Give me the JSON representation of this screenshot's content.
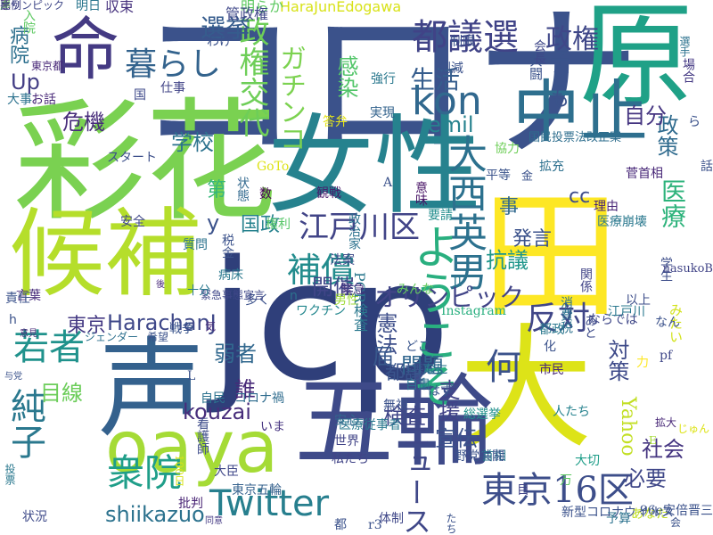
{
  "wordcloud": {
    "words": [
      {
        "text": "コロナ",
        "color": "#3b528b"
      },
      {
        "text": "jcp",
        "color": "#2f3f7a"
      },
      {
        "text": "彩花",
        "color": "#7ad151"
      },
      {
        "text": "女性",
        "color": "#26828e"
      },
      {
        "text": "候補",
        "color": "#b5de2b"
      },
      {
        "text": "原",
        "color": "#1fa187"
      },
      {
        "text": "田",
        "color": "#fde725"
      },
      {
        "text": "大",
        "color": "#dde318"
      },
      {
        "text": "声",
        "color": "#34618d"
      },
      {
        "text": "五輪",
        "color": "#3e4a89"
      },
      {
        "text": "oaya",
        "color": "#a5db36"
      },
      {
        "text": "命",
        "color": "#443a83"
      },
      {
        "text": "中止",
        "color": "#2e6f8e"
      },
      {
        "text": "都議選",
        "color": "#404387"
      },
      {
        "text": "暮らし",
        "color": "#33638d"
      },
      {
        "text": "政権交代",
        "color": "#6ece58"
      },
      {
        "text": "選挙",
        "color": "#365c8d"
      },
      {
        "text": "政権",
        "color": "#3f4788"
      },
      {
        "text": "生活",
        "color": "#365d8d"
      },
      {
        "text": "kon",
        "color": "#31688e"
      },
      {
        "text": "純子",
        "color": "#2a788e"
      },
      {
        "text": "若者",
        "color": "#20928c"
      },
      {
        "text": "衆院",
        "color": "#1f9e89"
      },
      {
        "text": "東京16区",
        "color": "#3d4e8a"
      },
      {
        "text": "Twitter",
        "color": "#277f8e"
      },
      {
        "text": "江戸川区",
        "color": "#414487"
      },
      {
        "text": "大西英男",
        "color": "#2c718e"
      },
      {
        "text": "ようこそ",
        "color": "#29af7f"
      },
      {
        "text": "補償",
        "color": "#228c8d"
      },
      {
        "text": "何",
        "color": "#3b528b"
      },
      {
        "text": "反対",
        "color": "#404688"
      },
      {
        "text": "HarachanJ",
        "color": "#3f4889"
      },
      {
        "text": "kouzai",
        "color": "#472d7b"
      },
      {
        "text": "shiikazuo",
        "color": "#2c728e"
      },
      {
        "text": "オリンピック",
        "color": "#414487"
      },
      {
        "text": "医療",
        "color": "#2eb37c"
      },
      {
        "text": "政策",
        "color": "#2f6b8e"
      },
      {
        "text": "自分",
        "color": "#453581"
      },
      {
        "text": "子ども",
        "color": "#3a538b"
      },
      {
        "text": "国政",
        "color": "#26828e"
      },
      {
        "text": "学校",
        "color": "#2c728e"
      },
      {
        "text": "危機",
        "color": "#472c7a"
      },
      {
        "text": "感染",
        "color": "#52c569"
      },
      {
        "text": "emil",
        "color": "#26828e"
      },
      {
        "text": "Up",
        "color": "#433e85"
      },
      {
        "text": "ガチンコ",
        "color": "#7cd250"
      },
      {
        "text": "開催",
        "color": "#404588"
      },
      {
        "text": "憲法",
        "color": "#3d4e8a"
      },
      {
        "text": "抗議",
        "color": "#1f968b"
      },
      {
        "text": "発言",
        "color": "#3b528b"
      },
      {
        "text": "事",
        "color": "#30698e"
      },
      {
        "text": "cc",
        "color": "#3e4c8a"
      },
      {
        "text": "問題",
        "color": "#31668e"
      },
      {
        "text": "対策",
        "color": "#3e4a89"
      },
      {
        "text": "支援",
        "color": "#414287"
      },
      {
        "text": "検査",
        "color": "#404688"
      },
      {
        "text": "宣伝",
        "color": "#3b528b"
      },
      {
        "text": "社会",
        "color": "#453581"
      },
      {
        "text": "必要",
        "color": "#3f4788"
      },
      {
        "text": "都議",
        "color": "#3a548c"
      },
      {
        "text": "Yahoo",
        "color": "#c2df23"
      },
      {
        "text": "ニュース",
        "color": "#3f4788"
      },
      {
        "text": "東京",
        "color": "#443983"
      },
      {
        "text": "弱者",
        "color": "#31688e"
      },
      {
        "text": "誰",
        "color": "#472878"
      },
      {
        "text": "届",
        "color": "#38588c"
      },
      {
        "text": "目線",
        "color": "#6ccd5a"
      },
      {
        "text": "第",
        "color": "#35b779"
      },
      {
        "text": "y",
        "color": "#3b528b"
      },
      {
        "text": "病院",
        "color": "#2d708e"
      },
      {
        "text": "HaraJunEdogawa",
        "color": "#d8e219"
      },
      {
        "text": "明らか",
        "color": "#5ec962"
      },
      {
        "text": "管政権",
        "color": "#3f4788"
      },
      {
        "text": "収束",
        "color": "#46327e"
      },
      {
        "text": "明日",
        "color": "#2a768e"
      },
      {
        "text": "入院",
        "color": "#5ec962"
      },
      {
        "text": "制限",
        "color": "#3b528b"
      },
      {
        "text": "国民投票法改正案",
        "color": "#2e6e8e"
      },
      {
        "text": "菅首相",
        "color": "#482878"
      },
      {
        "text": "学生",
        "color": "#3d4d8a"
      },
      {
        "text": "医療崩壊",
        "color": "#2a788e"
      },
      {
        "text": "理由",
        "color": "#482576"
      },
      {
        "text": "関係",
        "color": "#414487"
      },
      {
        "text": "消費税",
        "color": "#2c728e"
      },
      {
        "text": "みたい",
        "color": "#d2e21b"
      },
      {
        "text": "ならでは",
        "color": "#3f4788"
      },
      {
        "text": "男性",
        "color": "#9fda3a"
      },
      {
        "text": "みんな",
        "color": "#65cb5e"
      },
      {
        "text": "要請",
        "color": "#228d8d"
      },
      {
        "text": "法案",
        "color": "#3e4989"
      },
      {
        "text": "多く",
        "color": "#3b518b"
      },
      {
        "text": "病床",
        "color": "#2a788e"
      },
      {
        "text": "権利",
        "color": "#56c667"
      },
      {
        "text": "観戦",
        "color": "#48186a"
      },
      {
        "text": "GoTo",
        "color": "#dde318"
      },
      {
        "text": "数",
        "color": "#440154"
      },
      {
        "text": "質問",
        "color": "#2c738e"
      },
      {
        "text": "スタート",
        "color": "#3c4f8a"
      },
      {
        "text": "安全",
        "color": "#3f4788"
      },
      {
        "text": "意味",
        "color": "#471365"
      },
      {
        "text": "答弁",
        "color": "#e5e419"
      },
      {
        "text": "実現",
        "color": "#33638d"
      },
      {
        "text": "平等",
        "color": "#3a538b"
      },
      {
        "text": "拡充",
        "color": "#2d708e"
      },
      {
        "text": "税金",
        "color": "#3b528b"
      },
      {
        "text": "緊急事態宣言",
        "color": "#3f4788"
      },
      {
        "text": "PCR検査",
        "color": "#2a788e"
      },
      {
        "text": "Instagram",
        "color": "#29af7f"
      },
      {
        "text": "ワクチン",
        "color": "#24878e"
      },
      {
        "text": "緊急",
        "color": "#46337f"
      },
      {
        "text": "どこ",
        "color": "#39558c"
      },
      {
        "text": "なに",
        "color": "#2a778e"
      },
      {
        "text": "市民",
        "color": "#482878"
      },
      {
        "text": "自粛",
        "color": "#2c728e"
      },
      {
        "text": "無視",
        "color": "#3b528b"
      },
      {
        "text": "はず",
        "color": "#38588c"
      },
      {
        "text": "総選挙",
        "color": "#21918c"
      },
      {
        "text": "医療従事者",
        "color": "#2a788e"
      },
      {
        "text": "世界",
        "color": "#414487"
      },
      {
        "text": "いま",
        "color": "#463480"
      },
      {
        "text": "自民",
        "color": "#2c728e"
      },
      {
        "text": "コロナ禍",
        "color": "#2f6c8e"
      },
      {
        "text": "言葉",
        "color": "#472c7a"
      },
      {
        "text": "看護師",
        "color": "#3e4c8a"
      },
      {
        "text": "ジェンダー",
        "color": "#2d708e"
      },
      {
        "text": "戦争",
        "color": "#3a548c"
      },
      {
        "text": "希望",
        "color": "#3b528b"
      },
      {
        "text": "状況",
        "color": "#3e4a89"
      },
      {
        "text": "東京五輪",
        "color": "#34618d"
      },
      {
        "text": "大臣",
        "color": "#3f4788"
      },
      {
        "text": "批判",
        "color": "#482374"
      },
      {
        "text": "同意",
        "color": "#443a83"
      },
      {
        "text": "新型コロナウイルス",
        "color": "#3b528b"
      },
      {
        "text": "予算",
        "color": "#2c728e"
      },
      {
        "text": "あなた",
        "color": "#c2df23"
      },
      {
        "text": "体制",
        "color": "#3f4788"
      },
      {
        "text": "首相",
        "color": "#2a788e"
      },
      {
        "text": "大切",
        "color": "#1f9e89"
      },
      {
        "text": "私たち",
        "color": "#414487"
      },
      {
        "text": "安心",
        "color": "#31688e"
      },
      {
        "text": "拡大",
        "color": "#482878"
      },
      {
        "text": "96e安倍晋三",
        "color": "#3b528b"
      },
      {
        "text": "以上",
        "color": "#3d4e8a"
      },
      {
        "text": "江戸川",
        "color": "#2a788e"
      },
      {
        "text": "pf",
        "color": "#3f4788"
      },
      {
        "text": "人たち",
        "color": "#26828e"
      },
      {
        "text": "力",
        "color": "#fde725"
      },
      {
        "text": "あと",
        "color": "#3e4c8a"
      },
      {
        "text": "nasukoB",
        "color": "#414487"
      },
      {
        "text": "共闘",
        "color": "#3b528b"
      },
      {
        "text": "場合",
        "color": "#443983"
      },
      {
        "text": "選手",
        "color": "#2c728e"
      },
      {
        "text": "会長",
        "color": "#3f4788"
      },
      {
        "text": "削減",
        "color": "#3b528b"
      },
      {
        "text": "強行",
        "color": "#2a788e"
      },
      {
        "text": "仕事",
        "color": "#414487"
      },
      {
        "text": "わけ",
        "color": "#3b528b"
      },
      {
        "text": "東京都",
        "color": "#482878"
      },
      {
        "text": "お話",
        "color": "#482878"
      },
      {
        "text": "大事",
        "color": "#2c728e"
      },
      {
        "text": "投票",
        "color": "#2a788e"
      },
      {
        "text": "責任",
        "color": "#3b528b"
      },
      {
        "text": "意見",
        "color": "#472878"
      },
      {
        "text": "与党",
        "color": "#3b528b"
      },
      {
        "text": "政治家",
        "color": "#2c728e"
      },
      {
        "text": "状態",
        "color": "#31688e"
      },
      {
        "text": "協力",
        "color": "#6ece58"
      },
      {
        "text": "十分",
        "color": "#2a788e"
      },
      {
        "text": "気",
        "color": "#482878"
      },
      {
        "text": "話",
        "color": "#3b528b"
      },
      {
        "text": "都政",
        "color": "#2a788e"
      },
      {
        "text": "化",
        "color": "#3b528b"
      },
      {
        "text": "目",
        "color": "#414487"
      },
      {
        "text": "国",
        "color": "#3e4989"
      },
      {
        "text": "n",
        "color": "#2c728e"
      },
      {
        "text": "L",
        "color": "#3b528b"
      },
      {
        "text": "h",
        "color": "#3b528b"
      },
      {
        "text": "A",
        "color": "#3b528b"
      },
      {
        "text": "Il",
        "color": "#2a788e"
      },
      {
        "text": "万",
        "color": "#5ec962"
      },
      {
        "text": "E",
        "color": "#a5db36"
      },
      {
        "text": "ら",
        "color": "#3b528b"
      },
      {
        "text": "会",
        "color": "#3b528b"
      },
      {
        "text": "金",
        "color": "#3b528b"
      },
      {
        "text": "後",
        "color": "#482878"
      },
      {
        "text": "都",
        "color": "#3b528b"
      },
      {
        "text": "r3",
        "color": "#3b528b"
      },
      {
        "text": "たち",
        "color": "#3b528b"
      },
      {
        "text": "なん",
        "color": "#3b528b"
      },
      {
        "text": "じゅん",
        "color": "#dde318"
      },
      {
        "text": "100日",
        "color": "#d8e219"
      },
      {
        "text": "野党共闘",
        "color": "#3b528b"
      },
      {
        "text": "オリンピック",
        "color": "#3f4788"
      },
      {
        "text": "悪",
        "color": "#482878"
      },
      {
        "text": "岸",
        "color": "#6ece58"
      },
      {
        "text": "比例",
        "color": "#414487"
      }
    ]
  }
}
